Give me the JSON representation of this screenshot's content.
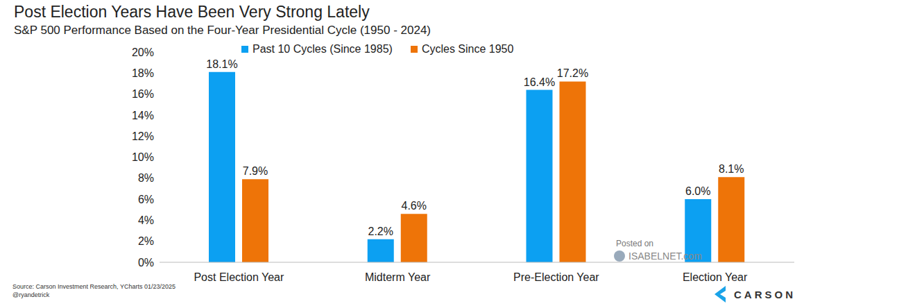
{
  "chart_data": {
    "type": "bar",
    "title": "Post Election Years Have Been Very Strong Lately",
    "subtitle": "S&P 500 Performance Based on the Four-Year Presidential Cycle (1950 - 2024)",
    "categories": [
      "Post Election Year",
      "Midterm Year",
      "Pre-Election Year",
      "Election Year"
    ],
    "series": [
      {
        "name": "Past 10 Cycles (Since 1985)",
        "color": "#0ca0f2",
        "values": [
          18.1,
          2.2,
          16.4,
          6.0
        ],
        "value_labels": [
          "18.1%",
          "2.2%",
          "16.4%",
          "6.0%"
        ]
      },
      {
        "name": "Cycles Since 1950",
        "color": "#ee7408",
        "values": [
          7.9,
          4.6,
          17.2,
          8.1
        ],
        "value_labels": [
          "7.9%",
          "4.6%",
          "17.2%",
          "8.1%"
        ]
      }
    ],
    "ylim": [
      0,
      20
    ],
    "yticks": [
      {
        "value": 0,
        "label": "0%"
      },
      {
        "value": 2,
        "label": "2%"
      },
      {
        "value": 4,
        "label": "4%"
      },
      {
        "value": 6,
        "label": "6%"
      },
      {
        "value": 8,
        "label": "8%"
      },
      {
        "value": 10,
        "label": "10%"
      },
      {
        "value": 12,
        "label": "12%"
      },
      {
        "value": 14,
        "label": "14%"
      },
      {
        "value": 16,
        "label": "16%"
      },
      {
        "value": 18,
        "label": "18%"
      },
      {
        "value": 20,
        "label": "20%"
      }
    ],
    "grid": false,
    "legend": "top",
    "data_labels": true,
    "source": "Source: Carson Investment Research, YCharts 01/23/2025",
    "credit": "@ryandetrick",
    "annotations": [
      "Posted on",
      "ISABELNET.com",
      "CARSON"
    ]
  }
}
